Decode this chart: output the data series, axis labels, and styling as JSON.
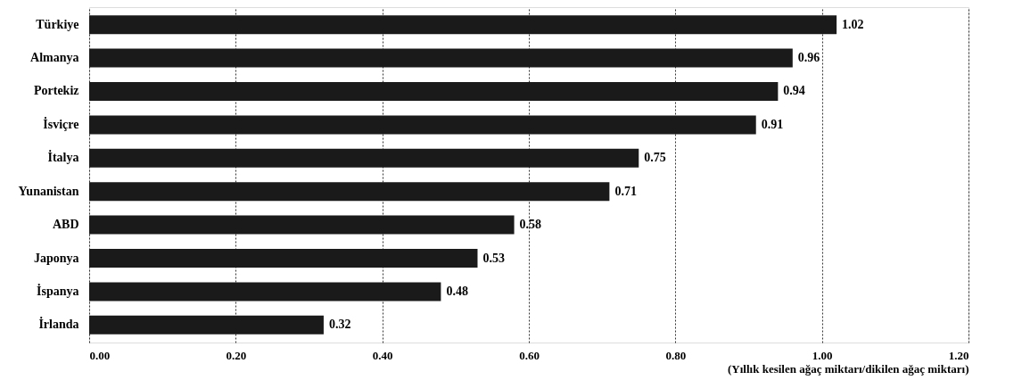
{
  "chart_data": {
    "type": "bar",
    "orientation": "horizontal",
    "categories": [
      "Türkiye",
      "Almanya",
      "Portekiz",
      "İsviçre",
      "İtalya",
      "Yunanistan",
      "ABD",
      "Japonya",
      "İspanya",
      "İrlanda"
    ],
    "values": [
      1.02,
      0.96,
      0.94,
      0.91,
      0.75,
      0.71,
      0.58,
      0.53,
      0.48,
      0.32
    ],
    "color": "#1a1a1a",
    "xlabel": "(Yıllık kesilen ağaç miktarı/dikilen ağaç miktarı)",
    "xlim": [
      0,
      1.2
    ],
    "xticks": [
      {
        "value": 0,
        "label": "0.00"
      },
      {
        "value": 0.2,
        "label": "0.20"
      },
      {
        "value": 0.4,
        "label": "0.40"
      },
      {
        "value": 0.6,
        "label": "0.60"
      },
      {
        "value": 0.8,
        "label": "0.80"
      },
      {
        "value": 1.0,
        "label": "1.00"
      },
      {
        "value": 1.2,
        "label": "1.20"
      }
    ],
    "grid": "x",
    "data_labels": true
  }
}
